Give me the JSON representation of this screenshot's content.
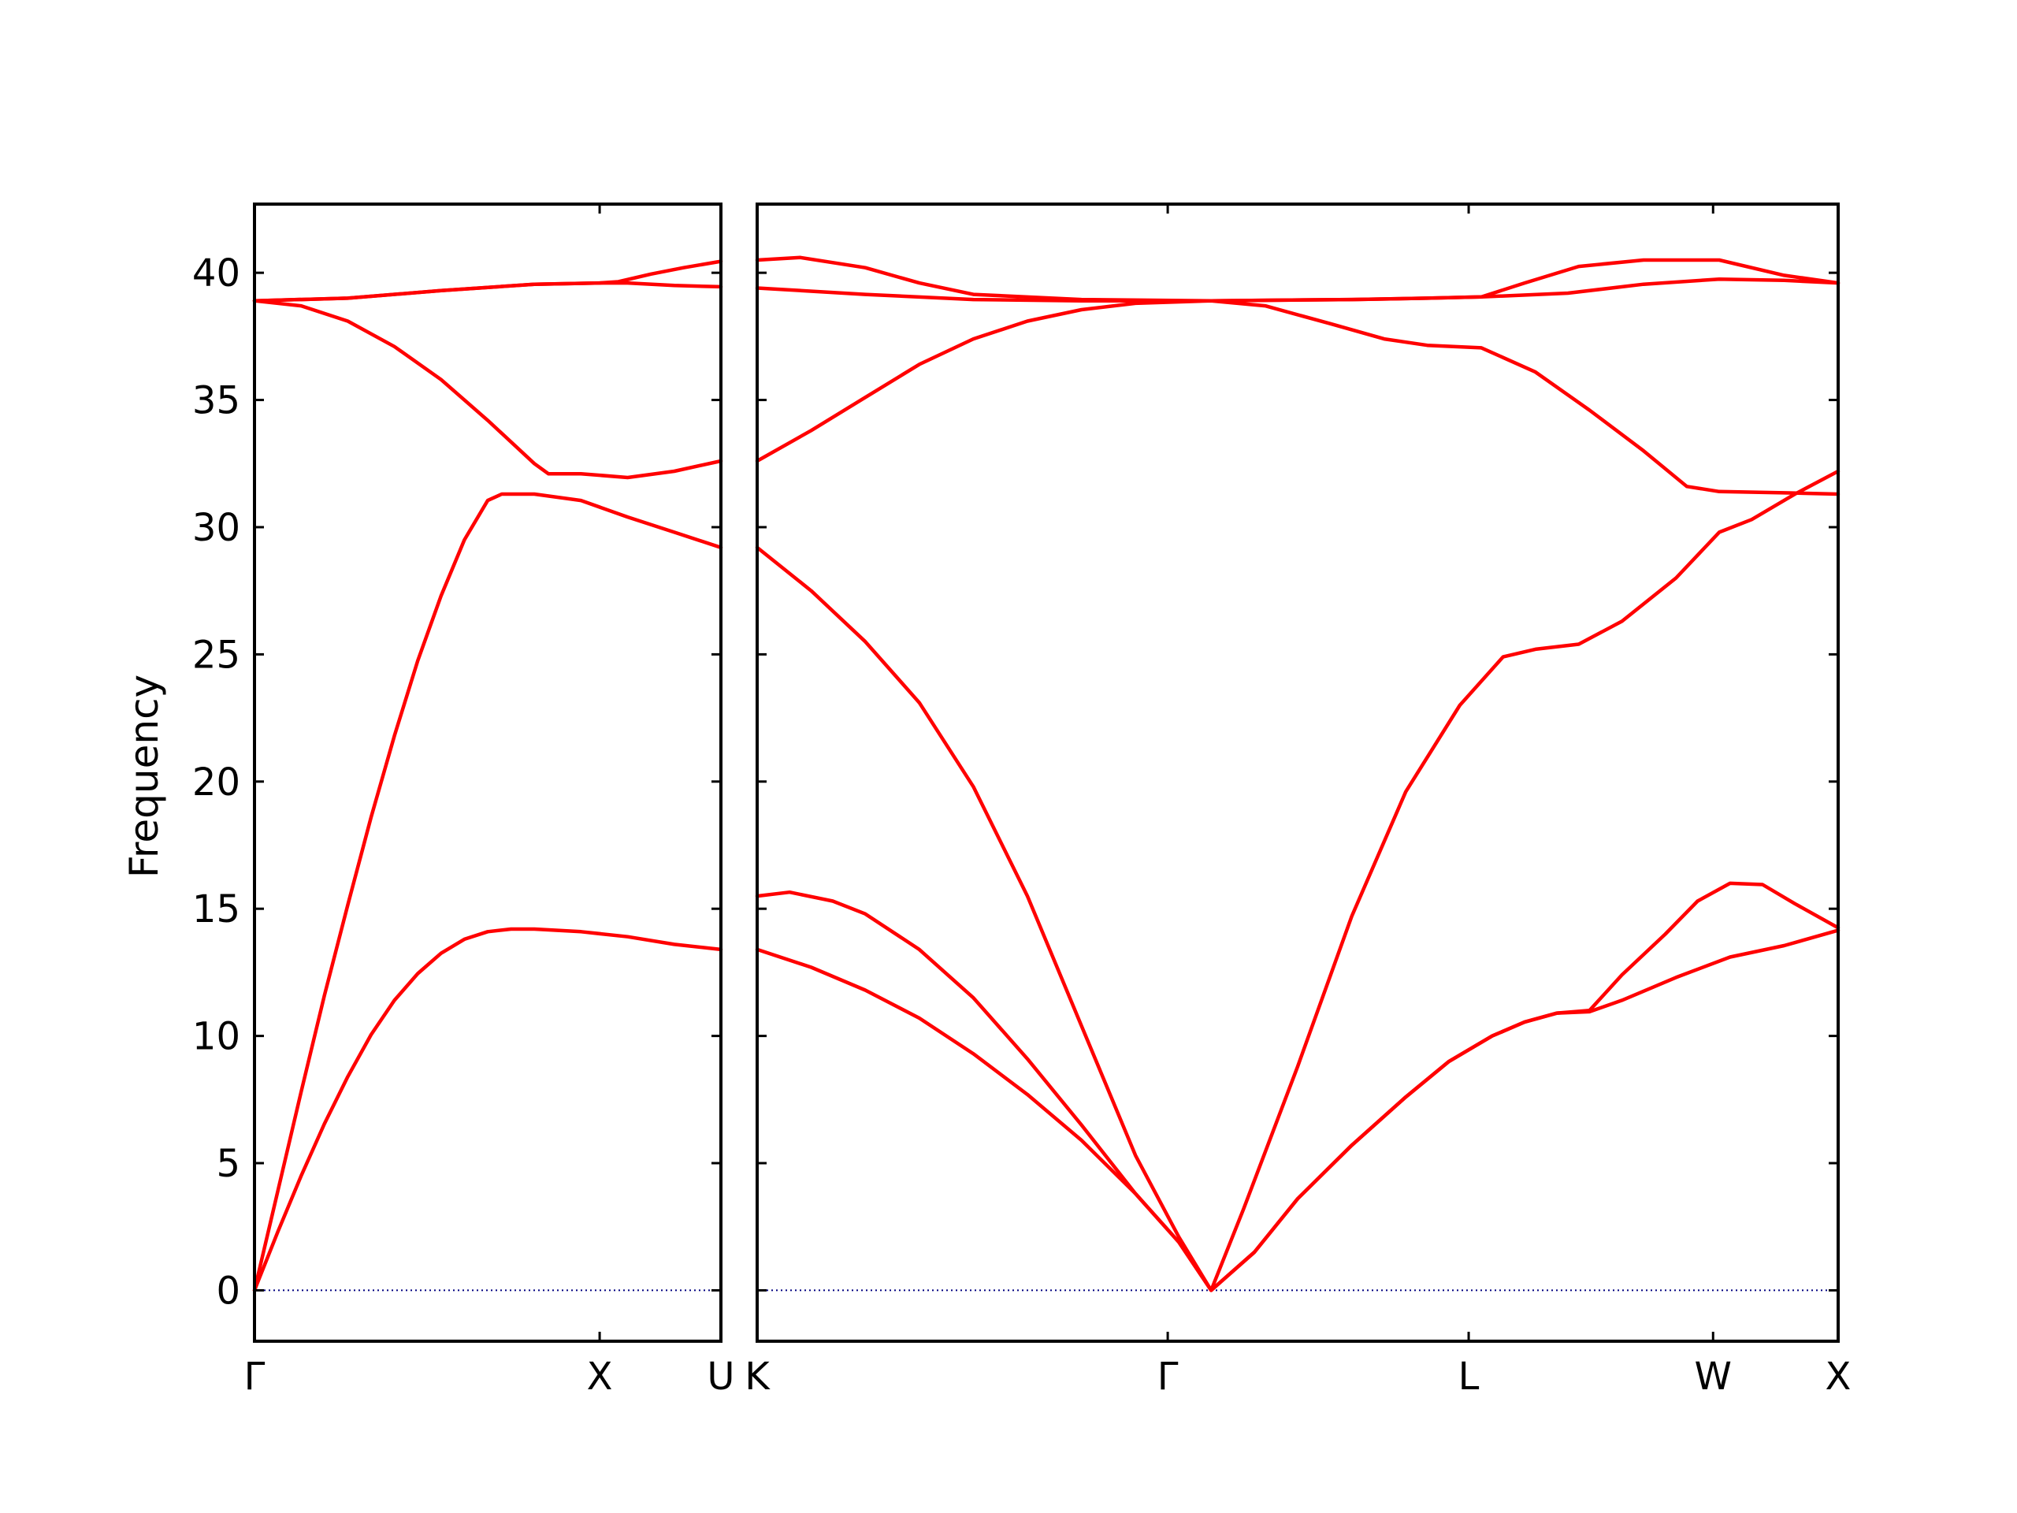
{
  "chart_data": {
    "type": "line",
    "title": "",
    "ylabel": "Frequency",
    "ylim": [
      -2,
      42.7
    ],
    "yticks": [
      0,
      5,
      10,
      15,
      20,
      25,
      30,
      35,
      40
    ],
    "colors": {
      "bands": "#ff0000",
      "zero_line": "#000080",
      "axes": "#000000"
    },
    "zero_line": {
      "y": 0,
      "style": "dotted"
    },
    "panels": [
      {
        "xticks": [
          "Γ",
          "X",
          "U"
        ],
        "bands": [
          [
            [
              0,
              0
            ],
            [
              0.05,
              2.3
            ],
            [
              0.1,
              4.5
            ],
            [
              0.15,
              6.55
            ],
            [
              0.2,
              8.4
            ],
            [
              0.25,
              10.05
            ],
            [
              0.3,
              11.4
            ],
            [
              0.35,
              12.45
            ],
            [
              0.4,
              13.25
            ],
            [
              0.45,
              13.8
            ],
            [
              0.5,
              14.1
            ],
            [
              0.55,
              14.2
            ],
            [
              0.6,
              14.2
            ],
            [
              0.7,
              14.1
            ],
            [
              0.8,
              13.9
            ],
            [
              0.9,
              13.6
            ],
            [
              1,
              13.4
            ]
          ],
          [
            [
              0,
              0
            ],
            [
              0.05,
              3.9
            ],
            [
              0.1,
              7.8
            ],
            [
              0.15,
              11.6
            ],
            [
              0.2,
              15.15
            ],
            [
              0.25,
              18.6
            ],
            [
              0.3,
              21.8
            ],
            [
              0.35,
              24.75
            ],
            [
              0.4,
              27.3
            ],
            [
              0.45,
              29.5
            ],
            [
              0.5,
              31.05
            ],
            [
              0.53,
              31.3
            ],
            [
              0.6,
              31.3
            ],
            [
              0.7,
              31.05
            ],
            [
              0.8,
              30.4
            ],
            [
              0.9,
              29.8
            ],
            [
              1,
              29.2
            ]
          ],
          [
            [
              0,
              38.9
            ],
            [
              0.1,
              38.7
            ],
            [
              0.2,
              38.1
            ],
            [
              0.3,
              37.1
            ],
            [
              0.4,
              35.8
            ],
            [
              0.5,
              34.2
            ],
            [
              0.6,
              32.5
            ],
            [
              0.63,
              32.1
            ],
            [
              0.7,
              32.1
            ],
            [
              0.8,
              31.95
            ],
            [
              0.9,
              32.2
            ],
            [
              1,
              32.6
            ]
          ],
          [
            [
              0,
              38.9
            ],
            [
              0.2,
              39.0
            ],
            [
              0.4,
              39.3
            ],
            [
              0.6,
              39.55
            ],
            [
              0.74,
              39.6
            ],
            [
              0.8,
              39.6
            ],
            [
              0.9,
              39.5
            ],
            [
              1,
              39.45
            ]
          ],
          [
            [
              0,
              38.9
            ],
            [
              0.2,
              39.0
            ],
            [
              0.4,
              39.3
            ],
            [
              0.6,
              39.55
            ],
            [
              0.74,
              39.6
            ],
            [
              0.78,
              39.65
            ],
            [
              0.85,
              39.95
            ],
            [
              0.92,
              40.2
            ],
            [
              1,
              40.45
            ]
          ]
        ]
      },
      {
        "xticks": [
          "K",
          "Γ",
          "L",
          "W",
          "X"
        ],
        "bands": [
          [
            [
              0,
              13.4
            ],
            [
              0.05,
              12.7
            ],
            [
              0.1,
              11.8
            ],
            [
              0.15,
              10.7
            ],
            [
              0.2,
              9.3
            ],
            [
              0.25,
              7.7
            ],
            [
              0.3,
              5.9
            ],
            [
              0.35,
              3.8
            ],
            [
              0.39,
              1.9
            ],
            [
              0.42,
              0
            ],
            [
              0.46,
              1.5
            ],
            [
              0.5,
              3.6
            ],
            [
              0.55,
              5.7
            ],
            [
              0.6,
              7.6
            ],
            [
              0.64,
              9.0
            ],
            [
              0.68,
              10.0
            ],
            [
              0.71,
              10.55
            ],
            [
              0.74,
              10.9
            ],
            [
              0.77,
              10.95
            ],
            [
              0.8,
              11.4
            ],
            [
              0.85,
              12.3
            ],
            [
              0.9,
              13.1
            ],
            [
              0.95,
              13.55
            ],
            [
              1,
              14.15
            ]
          ],
          [
            [
              0,
              15.5
            ],
            [
              0.03,
              15.65
            ],
            [
              0.07,
              15.3
            ],
            [
              0.1,
              14.8
            ],
            [
              0.15,
              13.4
            ],
            [
              0.2,
              11.5
            ],
            [
              0.25,
              9.1
            ],
            [
              0.3,
              6.5
            ],
            [
              0.35,
              3.8
            ],
            [
              0.39,
              1.9
            ],
            [
              0.42,
              0
            ],
            [
              0.46,
              1.5
            ],
            [
              0.5,
              3.6
            ],
            [
              0.55,
              5.7
            ],
            [
              0.6,
              7.6
            ],
            [
              0.64,
              9.0
            ],
            [
              0.68,
              10.0
            ],
            [
              0.71,
              10.55
            ],
            [
              0.74,
              10.9
            ],
            [
              0.77,
              11.0
            ],
            [
              0.8,
              12.4
            ],
            [
              0.84,
              14.0
            ],
            [
              0.87,
              15.3
            ],
            [
              0.9,
              16.0
            ],
            [
              0.93,
              15.95
            ],
            [
              0.96,
              15.2
            ],
            [
              1,
              14.25
            ]
          ],
          [
            [
              0,
              29.2
            ],
            [
              0.05,
              27.5
            ],
            [
              0.1,
              25.5
            ],
            [
              0.15,
              23.1
            ],
            [
              0.2,
              19.8
            ],
            [
              0.25,
              15.5
            ],
            [
              0.3,
              10.4
            ],
            [
              0.35,
              5.3
            ],
            [
              0.39,
              2.1
            ],
            [
              0.42,
              0
            ],
            [
              0.45,
              3.2
            ],
            [
              0.5,
              8.8
            ],
            [
              0.55,
              14.7
            ],
            [
              0.6,
              19.6
            ],
            [
              0.65,
              23.0
            ],
            [
              0.69,
              24.9
            ],
            [
              0.72,
              25.2
            ],
            [
              0.76,
              25.4
            ],
            [
              0.8,
              26.3
            ],
            [
              0.85,
              28.0
            ],
            [
              0.89,
              29.8
            ],
            [
              0.92,
              30.3
            ],
            [
              0.96,
              31.3
            ],
            [
              1,
              32.2
            ]
          ],
          [
            [
              0,
              32.6
            ],
            [
              0.05,
              33.8
            ],
            [
              0.1,
              35.1
            ],
            [
              0.15,
              36.4
            ],
            [
              0.2,
              37.4
            ],
            [
              0.25,
              38.1
            ],
            [
              0.3,
              38.55
            ],
            [
              0.35,
              38.8
            ],
            [
              0.42,
              38.9
            ],
            [
              0.47,
              38.7
            ],
            [
              0.53,
              38.0
            ],
            [
              0.58,
              37.4
            ],
            [
              0.62,
              37.15
            ],
            [
              0.67,
              37.05
            ],
            [
              0.72,
              36.1
            ],
            [
              0.77,
              34.6
            ],
            [
              0.82,
              33.0
            ],
            [
              0.86,
              31.6
            ],
            [
              0.89,
              31.4
            ],
            [
              0.95,
              31.35
            ],
            [
              1,
              31.3
            ]
          ],
          [
            [
              0,
              39.4
            ],
            [
              0.1,
              39.15
            ],
            [
              0.2,
              38.95
            ],
            [
              0.3,
              38.9
            ],
            [
              0.42,
              38.9
            ],
            [
              0.55,
              38.95
            ],
            [
              0.62,
              39.0
            ],
            [
              0.67,
              39.05
            ],
            [
              0.75,
              39.2
            ],
            [
              0.82,
              39.55
            ],
            [
              0.89,
              39.75
            ],
            [
              0.95,
              39.7
            ],
            [
              1,
              39.6
            ]
          ],
          [
            [
              0,
              40.5
            ],
            [
              0.04,
              40.6
            ],
            [
              0.1,
              40.2
            ],
            [
              0.15,
              39.6
            ],
            [
              0.2,
              39.15
            ],
            [
              0.3,
              38.95
            ],
            [
              0.42,
              38.9
            ],
            [
              0.55,
              38.95
            ],
            [
              0.62,
              39.0
            ],
            [
              0.67,
              39.05
            ],
            [
              0.71,
              39.6
            ],
            [
              0.76,
              40.25
            ],
            [
              0.82,
              40.5
            ],
            [
              0.89,
              40.5
            ],
            [
              0.95,
              39.9
            ],
            [
              1,
              39.6
            ]
          ]
        ]
      }
    ]
  }
}
